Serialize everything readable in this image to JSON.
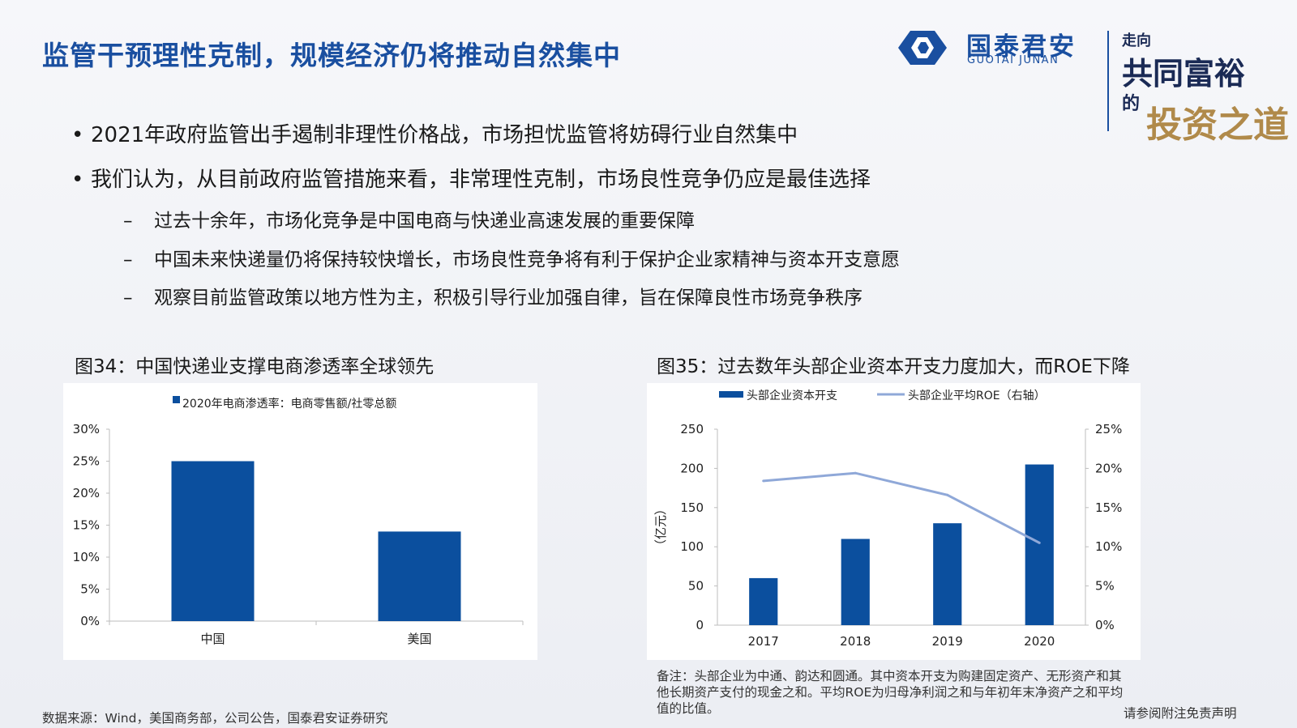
{
  "header": {
    "title": "监管干预理性克制，规模经济仍将推动自然集中",
    "logo_cn": "国泰君安",
    "logo_en": "GUOTAI JUNAN",
    "slogan": [
      "走向",
      "共同富裕",
      "的",
      "投资之道"
    ],
    "brand_color": "#1a4fa0"
  },
  "bullets": [
    {
      "text": "2021年政府监管出手遏制非理性价格战，市场担忧监管将妨碍行业自然集中"
    },
    {
      "text": "我们认为，从目前政府监管措施来看，非常理性克制，市场良性竞争仍应是最佳选择"
    }
  ],
  "sub_bullets": [
    {
      "text": "过去十余年，市场化竞争是中国电商与快递业高速发展的重要保障"
    },
    {
      "text": "中国未来快递量仍将保持较快增长，市场良性竞争将有利于保护企业家精神与资本开支意愿"
    },
    {
      "text": "观察目前监管政策以地方性为主，积极引导行业加强自律，旨在保障良性市场竞争秩序"
    }
  ],
  "chart_titles": {
    "left": "图34：中国快递业支撑电商渗透率全球领先",
    "right": "图35：过去数年头部企业资本开支力度加大，而ROE下降"
  },
  "chart_data": [
    {
      "type": "bar",
      "legend": "2020年电商渗透率：电商零售额/社零总额",
      "categories": [
        "中国",
        "美国"
      ],
      "series": [
        {
          "name": "2020年电商渗透率：电商零售额/社零总额",
          "values": [
            25,
            14
          ]
        }
      ],
      "y_ticks": [
        "0%",
        "5%",
        "10%",
        "15%",
        "20%",
        "25%",
        "30%"
      ],
      "ylim": [
        0,
        30
      ],
      "unit": "%",
      "bar_color": "#0b4f9e",
      "grid": false,
      "legend_position": "top"
    },
    {
      "type": "bar",
      "categories": [
        "2017",
        "2018",
        "2019",
        "2020"
      ],
      "series": [
        {
          "name": "头部企业资本开支",
          "type": "bar",
          "values": [
            60,
            110,
            130,
            205
          ],
          "axis": "left",
          "color": "#0b4f9e"
        },
        {
          "name": "头部企业平均ROE（右轴）",
          "type": "line",
          "values": [
            18.4,
            19.4,
            16.6,
            10.5
          ],
          "axis": "right",
          "color": "#8fa8d8"
        }
      ],
      "ylabel": "（亿元）",
      "ylim": [
        0,
        250
      ],
      "y_ticks": [
        "0",
        "50",
        "100",
        "150",
        "200",
        "250"
      ],
      "y2lim": [
        0,
        25
      ],
      "y2_ticks": [
        "0%",
        "5%",
        "10%",
        "15%",
        "20%",
        "25%"
      ],
      "grid": false,
      "legend_position": "top"
    }
  ],
  "note": "备注：头部企业为中通、韵达和圆通。其中资本开支为购建固定资产、无形资产和其他长期资产支付的现金之和。平均ROE为归母净利润之和与年初年末净资产之和平均值的比值。",
  "source": "数据来源：Wind，美国商务部，公司公告，国泰君安证券研究",
  "disclaimer": "请参阅附注免责声明"
}
